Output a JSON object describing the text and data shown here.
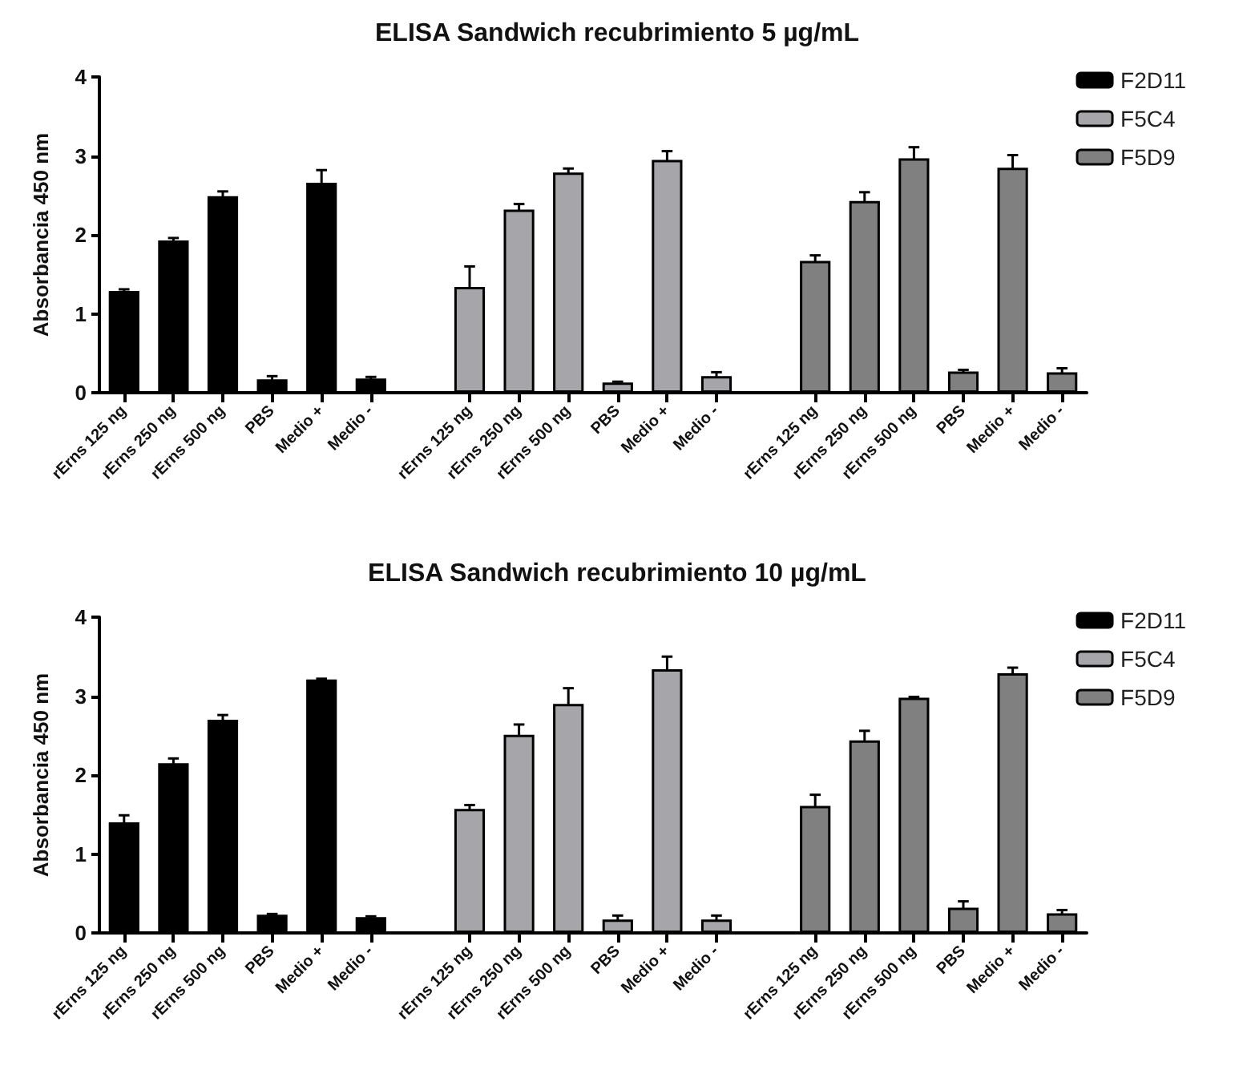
{
  "chart_data": [
    {
      "type": "bar",
      "title": "ELISA Sandwich recubrimiento 5 µg/mL",
      "ylabel": "Absorbancia 450 nm",
      "legend": "right",
      "ylim": [
        0,
        4
      ],
      "yticks": [
        0,
        1,
        2,
        3,
        4
      ],
      "categories": [
        "rErns 125 ng",
        "rErns 250 ng",
        "rErns 500 ng",
        "PBS",
        "Medio +",
        "Medio -",
        null,
        "rErns 125 ng",
        "rErns 250 ng",
        "rErns 500 ng",
        "PBS",
        "Medio +",
        "Medio -",
        null,
        "rErns 125 ng",
        "rErns 250 ng",
        "rErns 500 ng",
        "PBS",
        "Medio +",
        "Medio -"
      ],
      "series": [
        {
          "name": "F2D11",
          "color": "#000000",
          "values": [
            1.29,
            1.93,
            2.49,
            0.17,
            2.66,
            0.18,
            null,
            null,
            null,
            null,
            null,
            null,
            null,
            null,
            null,
            null,
            null,
            null,
            null,
            null
          ],
          "errors": [
            0.02,
            0.03,
            0.06,
            0.04,
            0.16,
            0.02,
            null,
            null,
            null,
            null,
            null,
            null,
            null,
            null,
            null,
            null,
            null,
            null,
            null,
            null
          ]
        },
        {
          "name": "F5C4",
          "color": "#a6a6aa",
          "values": [
            null,
            null,
            null,
            null,
            null,
            null,
            null,
            1.34,
            2.32,
            2.79,
            0.13,
            2.95,
            0.21,
            null,
            null,
            null,
            null,
            null,
            null,
            null
          ],
          "errors": [
            null,
            null,
            null,
            null,
            null,
            null,
            null,
            0.26,
            0.07,
            0.05,
            0.01,
            0.11,
            0.05,
            null,
            null,
            null,
            null,
            null,
            null,
            null
          ]
        },
        {
          "name": "F5D9",
          "color": "#808080",
          "values": [
            null,
            null,
            null,
            null,
            null,
            null,
            null,
            null,
            null,
            null,
            null,
            null,
            null,
            null,
            1.67,
            2.43,
            2.97,
            0.27,
            2.85,
            0.26
          ],
          "errors": [
            null,
            null,
            null,
            null,
            null,
            null,
            null,
            null,
            null,
            null,
            null,
            null,
            null,
            null,
            0.07,
            0.11,
            0.14,
            0.02,
            0.16,
            0.05
          ]
        }
      ]
    },
    {
      "type": "bar",
      "title": "ELISA Sandwich recubrimiento 10 µg/mL",
      "ylabel": "Absorbancia 450 nm",
      "legend": "right",
      "ylim": [
        0,
        4
      ],
      "yticks": [
        0,
        1,
        2,
        3,
        4
      ],
      "categories": [
        "rErns 125 ng",
        "rErns 250 ng",
        "rErns 500 ng",
        "PBS",
        "Medio +",
        "Medio -",
        null,
        "rErns 125 ng",
        "rErns 250 ng",
        "rErns 500 ng",
        "PBS",
        "Medio +",
        "Medio -",
        null,
        "rErns 125 ng",
        "rErns 250 ng",
        "rErns 500 ng",
        "PBS",
        "Medio +",
        "Medio -"
      ],
      "series": [
        {
          "name": "F2D11",
          "color": "#000000",
          "values": [
            1.4,
            2.15,
            2.7,
            0.23,
            3.21,
            0.2,
            null,
            null,
            null,
            null,
            null,
            null,
            null,
            null,
            null,
            null,
            null,
            null,
            null,
            null
          ],
          "errors": [
            0.09,
            0.06,
            0.06,
            0.01,
            0.01,
            0.01,
            null,
            null,
            null,
            null,
            null,
            null,
            null,
            null,
            null,
            null,
            null,
            null,
            null,
            null
          ]
        },
        {
          "name": "F5C4",
          "color": "#a6a6aa",
          "values": [
            null,
            null,
            null,
            null,
            null,
            null,
            null,
            1.57,
            2.51,
            2.9,
            0.17,
            3.34,
            0.17,
            null,
            null,
            null,
            null,
            null,
            null,
            null
          ],
          "errors": [
            null,
            null,
            null,
            null,
            null,
            null,
            null,
            0.05,
            0.13,
            0.2,
            0.05,
            0.16,
            0.05,
            null,
            null,
            null,
            null,
            null,
            null,
            null
          ]
        },
        {
          "name": "F5D9",
          "color": "#808080",
          "values": [
            null,
            null,
            null,
            null,
            null,
            null,
            null,
            null,
            null,
            null,
            null,
            null,
            null,
            null,
            1.61,
            2.44,
            2.98,
            0.32,
            3.29,
            0.25
          ],
          "errors": [
            null,
            null,
            null,
            null,
            null,
            null,
            null,
            null,
            null,
            null,
            null,
            null,
            null,
            null,
            0.14,
            0.12,
            0.01,
            0.08,
            0.07,
            0.04
          ]
        }
      ]
    }
  ]
}
